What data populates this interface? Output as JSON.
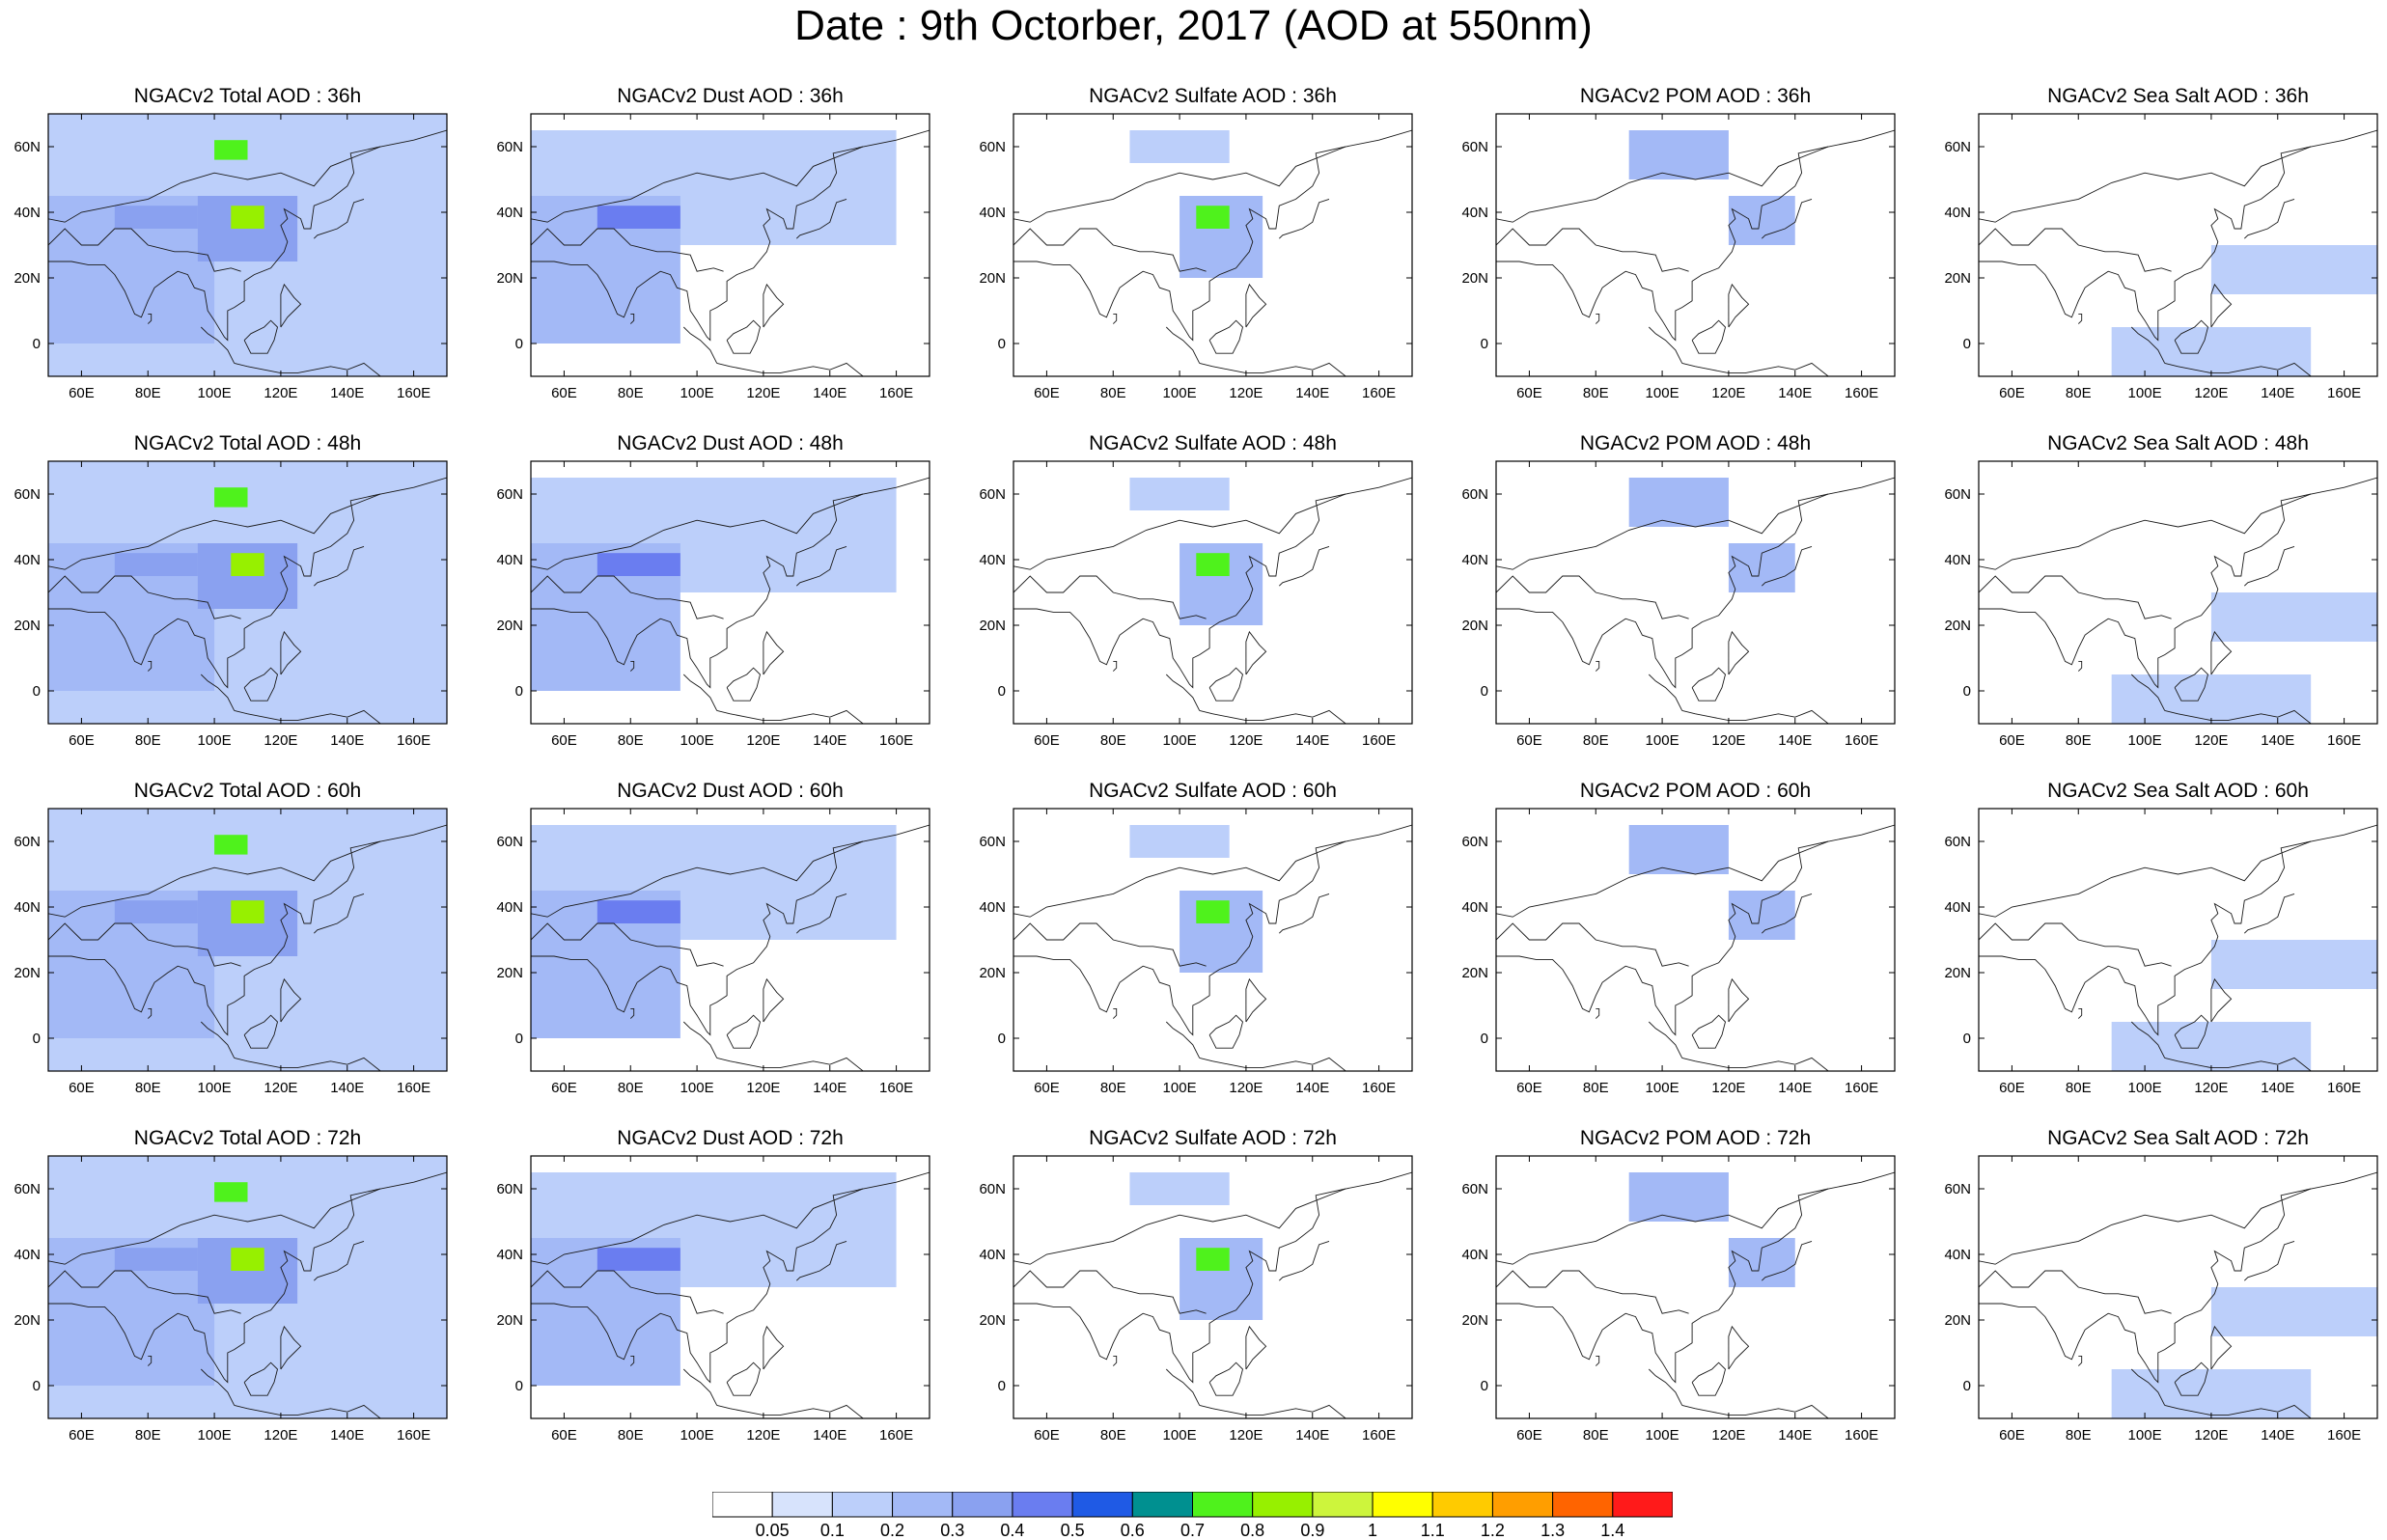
{
  "title": "Date : 9th Octorber, 2017 (AOD at 550nm)",
  "map": {
    "lon_range": [
      50,
      170
    ],
    "lat_range": [
      -10,
      70
    ],
    "x_ticks": [
      "60E",
      "80E",
      "100E",
      "120E",
      "140E",
      "160E"
    ],
    "x_tick_values": [
      60,
      80,
      100,
      120,
      140,
      160
    ],
    "y_ticks": [
      "60N",
      "40N",
      "20N",
      "0"
    ],
    "y_tick_values": [
      60,
      40,
      20,
      0
    ]
  },
  "colorbar": {
    "labels": [
      "0.05",
      "0.1",
      "0.2",
      "0.3",
      "0.4",
      "0.5",
      "0.6",
      "0.7",
      "0.8",
      "0.9",
      "1",
      "1.1",
      "1.2",
      "1.3",
      "1.4"
    ],
    "colors": [
      "#ffffff",
      "#d7e3fc",
      "#bccffa",
      "#a3b9f6",
      "#8aa1f0",
      "#6a7df0",
      "#1f5ae5",
      "#009090",
      "#4ff21c",
      "#97f000",
      "#cdf53c",
      "#ffff00",
      "#ffcb00",
      "#ff9e00",
      "#ff6400",
      "#ff1a1a"
    ]
  },
  "rows": [
    "36h",
    "48h",
    "60h",
    "72h"
  ],
  "columns": [
    {
      "key": "total",
      "titles": [
        "NGACv2 Total AOD : 36h",
        "NGACv2 Total AOD : 48h",
        "NGACv2 Total AOD : 60h",
        "NGACv2 Total AOD : 72h"
      ]
    },
    {
      "key": "dust",
      "titles": [
        "NGACv2 Dust AOD : 36h",
        "NGACv2 Dust AOD : 48h",
        "NGACv2 Dust AOD : 60h",
        "NGACv2 Dust AOD : 72h"
      ]
    },
    {
      "key": "sulfate",
      "titles": [
        "NGACv2 Sulfate AOD : 36h",
        "NGACv2 Sulfate AOD : 48h",
        "NGACv2 Sulfate AOD : 60h",
        "NGACv2 Sulfate AOD : 72h"
      ]
    },
    {
      "key": "pom",
      "titles": [
        "NGACv2 POM AOD : 36h",
        "NGACv2 POM AOD : 48h",
        "NGACv2 POM AOD : 60h",
        "NGACv2 POM AOD : 72h"
      ]
    },
    {
      "key": "seasalt",
      "titles": [
        "NGACv2 Sea Salt AOD : 36h",
        "NGACv2 Sea Salt AOD : 48h",
        "NGACv2 Sea Salt AOD : 60h",
        "NGACv2 Sea Salt  AOD : 72h"
      ]
    }
  ],
  "field_regions": {
    "total": [
      {
        "lon": [
          50,
          170
        ],
        "lat": [
          -10,
          70
        ],
        "value": 0.15
      },
      {
        "lon": [
          50,
          100
        ],
        "lat": [
          0,
          45
        ],
        "value": 0.25
      },
      {
        "lon": [
          70,
          95
        ],
        "lat": [
          35,
          42
        ],
        "value": 0.35
      },
      {
        "lon": [
          95,
          125
        ],
        "lat": [
          25,
          45
        ],
        "value": 0.3
      },
      {
        "lon": [
          105,
          115
        ],
        "lat": [
          35,
          42
        ],
        "value": 0.8
      },
      {
        "lon": [
          100,
          110
        ],
        "lat": [
          56,
          62
        ],
        "value": 0.7
      }
    ],
    "dust": [
      {
        "lon": [
          50,
          160
        ],
        "lat": [
          30,
          65
        ],
        "value": 0.12
      },
      {
        "lon": [
          50,
          95
        ],
        "lat": [
          0,
          45
        ],
        "value": 0.25
      },
      {
        "lon": [
          70,
          95
        ],
        "lat": [
          35,
          42
        ],
        "value": 0.4
      }
    ],
    "sulfate": [
      {
        "lon": [
          100,
          125
        ],
        "lat": [
          20,
          45
        ],
        "value": 0.2
      },
      {
        "lon": [
          105,
          115
        ],
        "lat": [
          35,
          42
        ],
        "value": 0.7
      },
      {
        "lon": [
          85,
          115
        ],
        "lat": [
          55,
          65
        ],
        "value": 0.12
      }
    ],
    "pom": [
      {
        "lon": [
          90,
          120
        ],
        "lat": [
          50,
          65
        ],
        "value": 0.2
      },
      {
        "lon": [
          120,
          140
        ],
        "lat": [
          30,
          45
        ],
        "value": 0.2
      }
    ],
    "seasalt": [
      {
        "lon": [
          120,
          170
        ],
        "lat": [
          15,
          30
        ],
        "value": 0.12
      },
      {
        "lon": [
          90,
          150
        ],
        "lat": [
          -10,
          5
        ],
        "value": 0.1
      }
    ]
  }
}
